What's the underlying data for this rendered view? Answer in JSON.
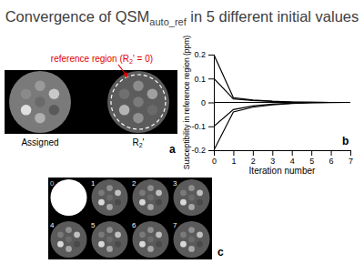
{
  "figure": {
    "title": [
      "Convergence of QSM",
      "auto_ref",
      " in 5 different initial values"
    ],
    "panel_a": {
      "label": "a",
      "annotation": [
        "reference region (R",
        "2",
        "' = 0)"
      ],
      "captions": [
        [
          "Assigned"
        ],
        [
          "R",
          "2",
          "'"
        ]
      ]
    },
    "panel_c": {
      "label": "c",
      "frames": [
        0,
        1,
        2,
        3,
        4,
        5,
        6,
        7
      ]
    }
  },
  "chart_data": {
    "type": "line",
    "label": "b",
    "x_label": "Iteration number",
    "y_label": "Susceptibility in reference region (ppm)",
    "x": [
      0,
      1,
      2,
      3,
      4,
      5,
      6,
      7
    ],
    "series": [
      {
        "color": "#000000",
        "values": [
          0.2,
          0.02,
          0.01,
          0.005,
          0.002,
          0.001,
          0,
          0
        ]
      },
      {
        "color": "#000000",
        "values": [
          0.1,
          0.015,
          0.008,
          0.004,
          0.002,
          0.001,
          0,
          0
        ]
      },
      {
        "color": "#000000",
        "values": [
          0,
          0,
          0,
          0,
          0,
          0,
          0,
          0
        ]
      },
      {
        "color": "#000000",
        "values": [
          -0.1,
          -0.03,
          -0.015,
          -0.007,
          -0.003,
          -0.001,
          0,
          0
        ]
      },
      {
        "color": "#000000",
        "values": [
          -0.2,
          -0.04,
          -0.02,
          -0.01,
          -0.004,
          -0.002,
          -0.001,
          0
        ]
      }
    ],
    "xlim": [
      0,
      7
    ],
    "xticks": [
      0,
      1,
      2,
      3,
      4,
      5,
      6,
      7
    ],
    "ylim": [
      -0.2,
      0.2
    ],
    "yticks": [
      -0.2,
      -0.1,
      0,
      0.1,
      0.2
    ],
    "grid": false
  }
}
